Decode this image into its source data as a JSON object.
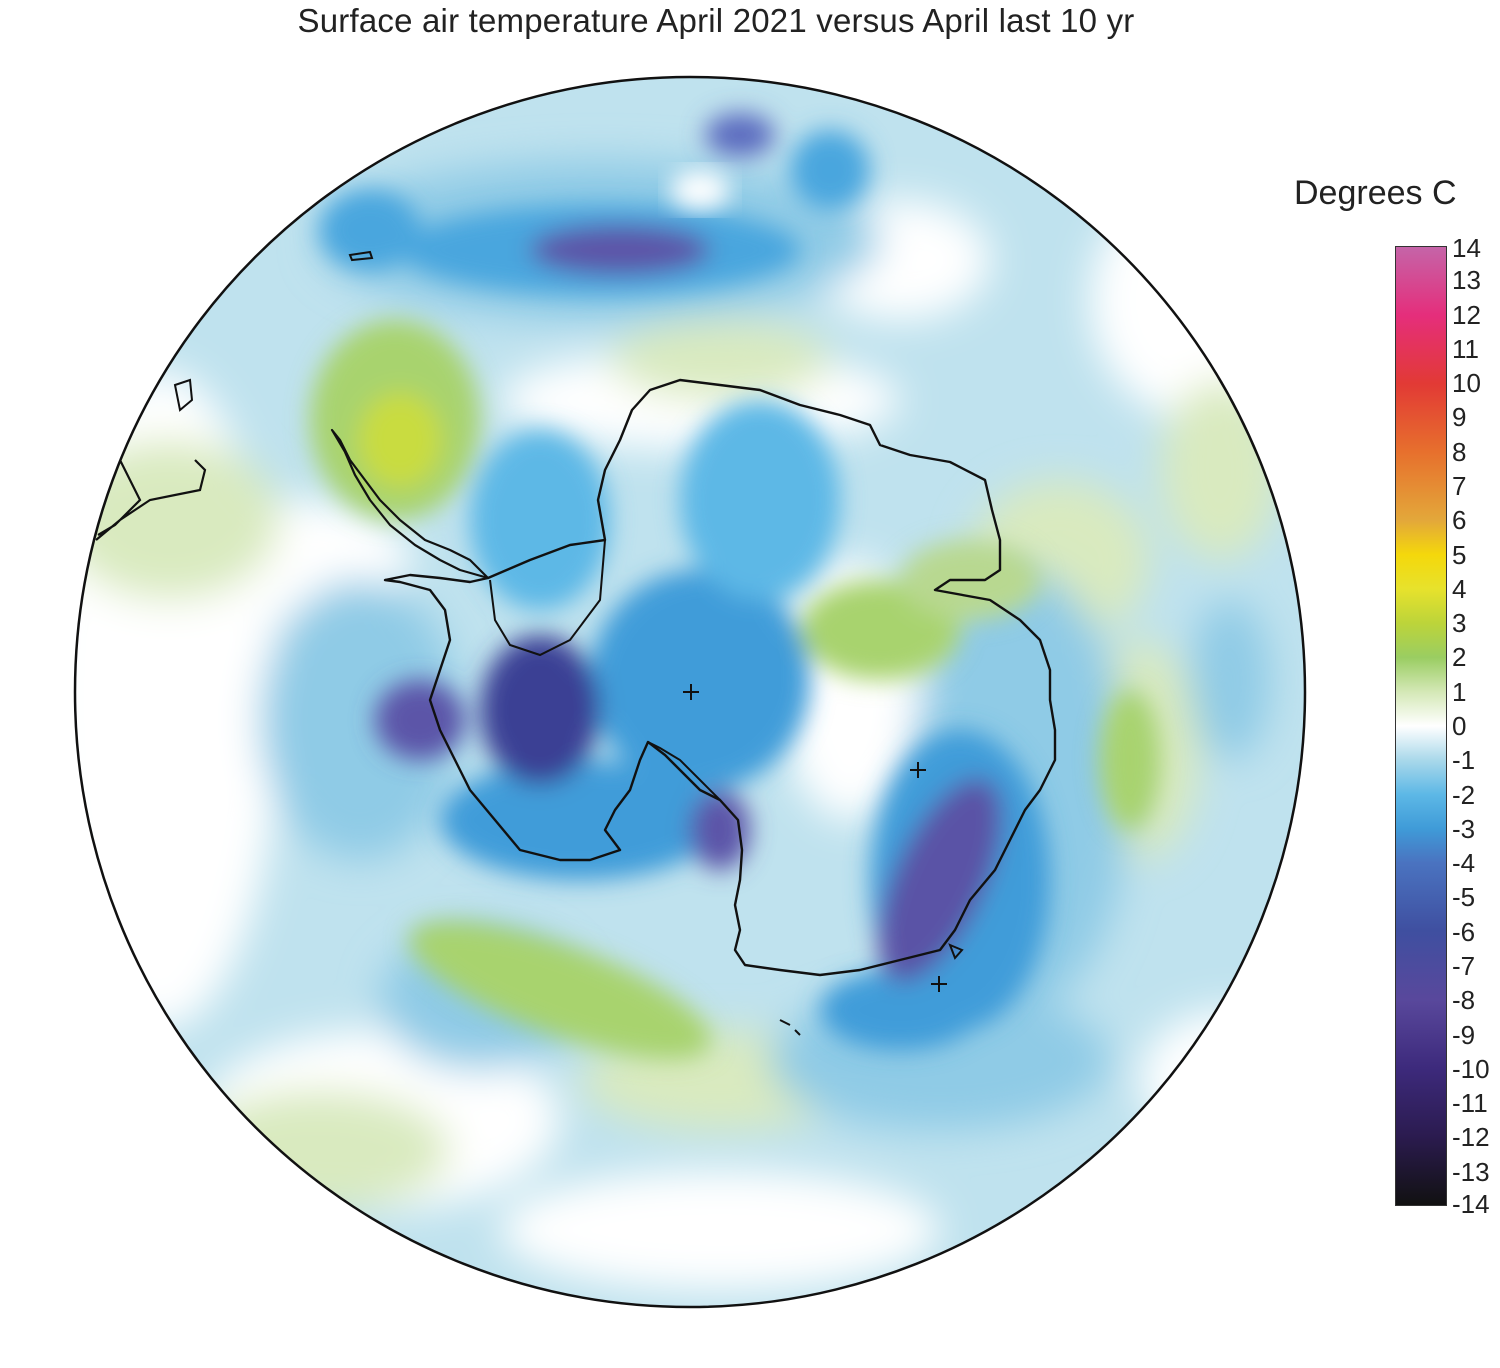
{
  "title": "Surface air temperature April 2021 versus April last 10 yr",
  "legend": {
    "title": "Degrees C",
    "min": -14,
    "max": 14,
    "ticks": [
      "14",
      "13",
      "12",
      "11",
      "10",
      "9",
      "8",
      "7",
      "6",
      "5",
      "4",
      "3",
      "2",
      "1",
      "0",
      "-1",
      "-2",
      "-3",
      "-4",
      "-5",
      "-6",
      "-7",
      "-8",
      "-9",
      "-10",
      "-11",
      "-12",
      "-13",
      "-14"
    ],
    "color_stops": [
      {
        "value": -14,
        "color": "#111111"
      },
      {
        "value": -12,
        "color": "#2b1b4f"
      },
      {
        "value": -10,
        "color": "#3d2a7c"
      },
      {
        "value": -8,
        "color": "#59489c"
      },
      {
        "value": -6,
        "color": "#3f4fa0"
      },
      {
        "value": -4,
        "color": "#4a73c0"
      },
      {
        "value": -3,
        "color": "#3f9bd8"
      },
      {
        "value": -2,
        "color": "#5db8e6"
      },
      {
        "value": -1,
        "color": "#a9d8ea"
      },
      {
        "value": 0,
        "color": "#ffffff"
      },
      {
        "value": 1,
        "color": "#d4e8b6"
      },
      {
        "value": 2,
        "color": "#9acd62"
      },
      {
        "value": 3,
        "color": "#bcd43a"
      },
      {
        "value": 4,
        "color": "#e7e22c"
      },
      {
        "value": 5,
        "color": "#f4d80b"
      },
      {
        "value": 6,
        "color": "#e3a83a"
      },
      {
        "value": 8,
        "color": "#e7702d"
      },
      {
        "value": 10,
        "color": "#e23a35"
      },
      {
        "value": 12,
        "color": "#e52e7b"
      },
      {
        "value": 14,
        "color": "#c564a8"
      }
    ]
  },
  "map": {
    "projection": "south polar stereographic",
    "region": "Antarctica and Southern Ocean",
    "markers": [
      "plus-marker",
      "plus-marker",
      "plus-marker"
    ],
    "anomaly_colors": {
      "very_cold": "#3a3f94",
      "cold": "#4d6fc0",
      "cool": "#3f9cd9",
      "slightly_cool": "#a9d8ea",
      "neutral": "#ffffff",
      "slightly_warm": "#d9eabf",
      "warm": "#a8d36e",
      "warmer": "#c9dc40",
      "ocean_base": "#bfe2ee"
    }
  }
}
